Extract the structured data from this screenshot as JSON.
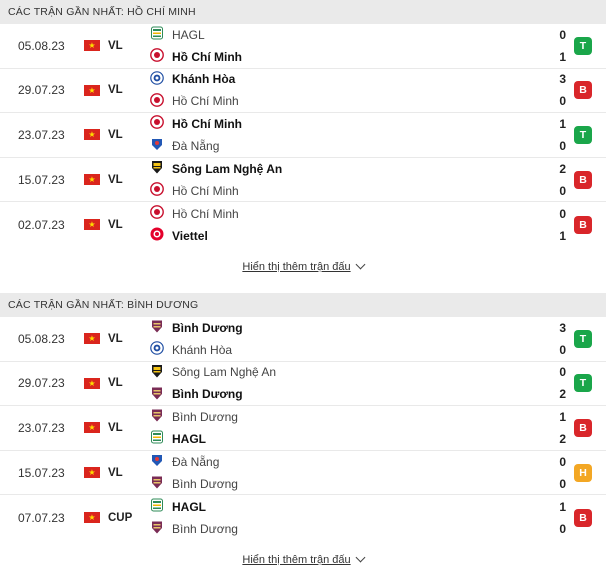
{
  "sections": [
    {
      "title": "CÁC TRẬN GẦN NHẤT: HỒ CHÍ MINH",
      "show_more": "Hiển thị thêm trận đấu",
      "matches": [
        {
          "date": "05.08.23",
          "comp": "VL",
          "home": "HAGL",
          "away": "Hồ Chí Minh",
          "home_score": "0",
          "away_score": "1",
          "winner": "away",
          "result": "T",
          "home_crest": "hagl",
          "away_crest": "hcm"
        },
        {
          "date": "29.07.23",
          "comp": "VL",
          "home": "Khánh Hòa",
          "away": "Hồ Chí Minh",
          "home_score": "3",
          "away_score": "0",
          "winner": "home",
          "result": "B",
          "home_crest": "khanhhoa",
          "away_crest": "hcm"
        },
        {
          "date": "23.07.23",
          "comp": "VL",
          "home": "Hồ Chí Minh",
          "away": "Đà Nẵng",
          "home_score": "1",
          "away_score": "0",
          "winner": "home",
          "result": "T",
          "home_crest": "hcm",
          "away_crest": "danang"
        },
        {
          "date": "15.07.23",
          "comp": "VL",
          "home": "Sông Lam Nghệ An",
          "away": "Hồ Chí Minh",
          "home_score": "2",
          "away_score": "0",
          "winner": "home",
          "result": "B",
          "home_crest": "slna",
          "away_crest": "hcm"
        },
        {
          "date": "02.07.23",
          "comp": "VL",
          "home": "Hồ Chí Minh",
          "away": "Viettel",
          "home_score": "0",
          "away_score": "1",
          "winner": "away",
          "result": "B",
          "home_crest": "hcm",
          "away_crest": "viettel"
        }
      ]
    },
    {
      "title": "CÁC TRẬN GẦN NHẤT: BÌNH DƯƠNG",
      "show_more": "Hiển thị thêm trận đấu",
      "matches": [
        {
          "date": "05.08.23",
          "comp": "VL",
          "home": "Bình Dương",
          "away": "Khánh Hòa",
          "home_score": "3",
          "away_score": "0",
          "winner": "home",
          "result": "T",
          "home_crest": "binhduong",
          "away_crest": "khanhhoa"
        },
        {
          "date": "29.07.23",
          "comp": "VL",
          "home": "Sông Lam Nghệ An",
          "away": "Bình Dương",
          "home_score": "0",
          "away_score": "2",
          "winner": "away",
          "result": "T",
          "home_crest": "slna",
          "away_crest": "binhduong"
        },
        {
          "date": "23.07.23",
          "comp": "VL",
          "home": "Bình Dương",
          "away": "HAGL",
          "home_score": "1",
          "away_score": "2",
          "winner": "away",
          "result": "B",
          "home_crest": "binhduong",
          "away_crest": "hagl"
        },
        {
          "date": "15.07.23",
          "comp": "VL",
          "home": "Đà Nẵng",
          "away": "Bình Dương",
          "home_score": "0",
          "away_score": "0",
          "winner": "none",
          "result": "H",
          "home_crest": "danang",
          "away_crest": "binhduong"
        },
        {
          "date": "07.07.23",
          "comp": "CUP",
          "home": "HAGL",
          "away": "Bình Dương",
          "home_score": "1",
          "away_score": "0",
          "winner": "home",
          "result": "B",
          "home_crest": "hagl",
          "away_crest": "binhduong"
        }
      ]
    }
  ],
  "colors": {
    "win": "#1aa64a",
    "loss": "#d9262a",
    "draw": "#f3a724"
  }
}
